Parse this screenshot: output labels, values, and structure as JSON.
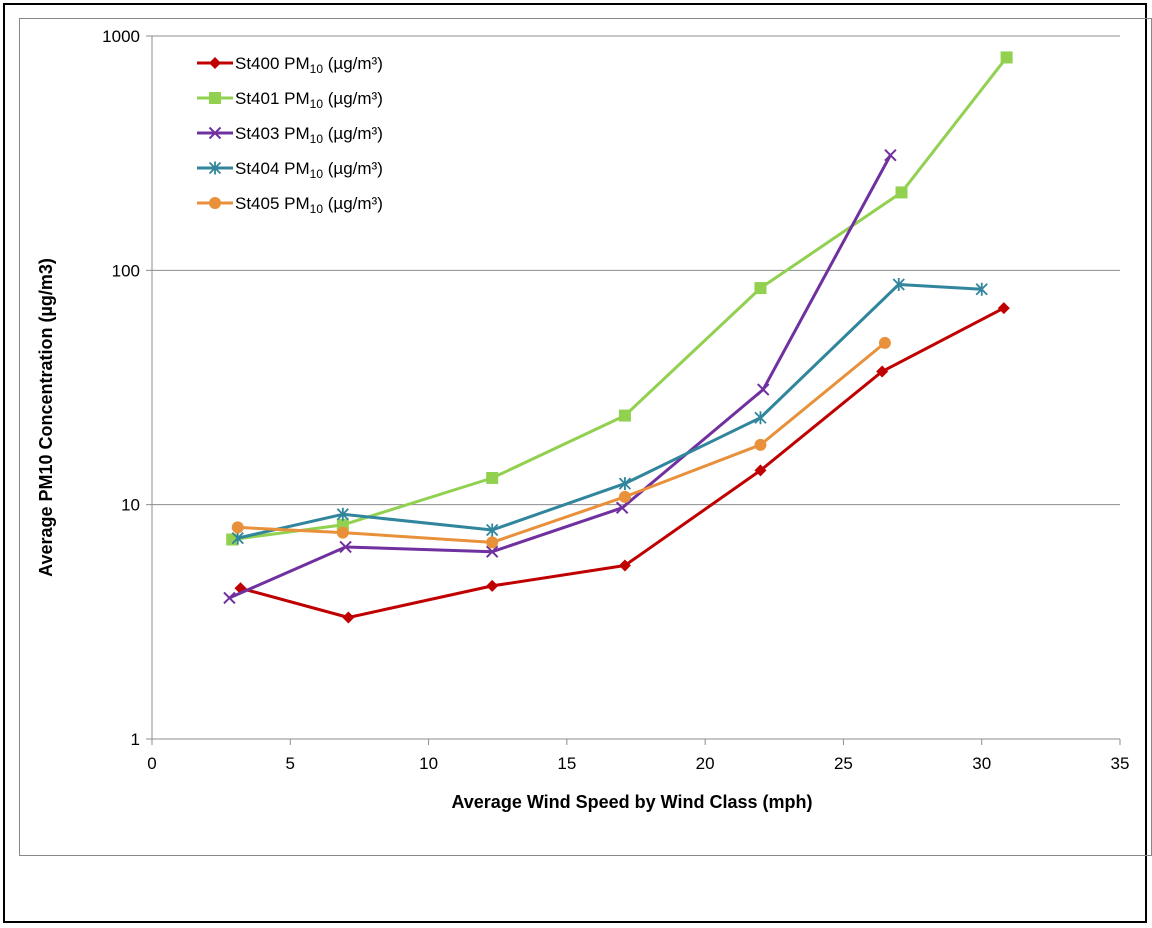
{
  "chart_data": {
    "type": "line",
    "title": "",
    "xlabel": "Average Wind Speed by Wind Class (mph)",
    "ylabel": "Average PM10 Concentration  (µg/m3)",
    "xlim": [
      0,
      35
    ],
    "ylim": [
      1,
      1000
    ],
    "y_scale": "log",
    "x_ticks": [
      0,
      5,
      10,
      15,
      20,
      25,
      30,
      35
    ],
    "x_tick_labels": [
      "0",
      "5",
      "10",
      "15",
      "20",
      "25",
      "30",
      "35"
    ],
    "y_ticks": [
      1,
      10,
      100,
      1000
    ],
    "y_tick_labels": [
      "1",
      "10",
      "100",
      "1000"
    ],
    "grid": "horizontal major gridlines",
    "legend_position": "top-left",
    "series": [
      {
        "name": "St400 PM10 (µg/m³)",
        "label_prefix": "St400 PM",
        "label_sub": "10",
        "label_suffix": " (µg/m³)",
        "color": "#c00000",
        "marker": "diamond",
        "x": [
          3.2,
          7.1,
          12.3,
          17.1,
          22.0,
          26.4,
          30.8
        ],
        "y": [
          4.4,
          3.3,
          4.5,
          5.5,
          14.0,
          37.0,
          69.0
        ]
      },
      {
        "name": "St401 PM10 (µg/m³)",
        "label_prefix": "St401 PM",
        "label_sub": "10",
        "label_suffix": " (µg/m³)",
        "color": "#92d050",
        "marker": "square",
        "x": [
          2.9,
          6.9,
          12.3,
          17.1,
          22.0,
          27.1,
          30.9
        ],
        "y": [
          7.1,
          8.2,
          13.0,
          24.0,
          84.0,
          215.0,
          810.0
        ]
      },
      {
        "name": "St403 PM10 (µg/m³)",
        "label_prefix": "St403 PM",
        "label_sub": "10",
        "label_suffix": " (µg/m³)",
        "color": "#7030a0",
        "marker": "x",
        "x": [
          2.8,
          7.0,
          12.3,
          17.0,
          22.1,
          26.7
        ],
        "y": [
          4.0,
          6.6,
          6.3,
          9.7,
          31.0,
          310.0
        ]
      },
      {
        "name": "St404 PM10 (µg/m³)",
        "label_prefix": "St404 PM",
        "label_sub": "10",
        "label_suffix": " (µg/m³)",
        "color": "#31859c",
        "marker": "asterisk",
        "x": [
          3.1,
          6.9,
          12.3,
          17.1,
          22.0,
          27.0,
          30.0
        ],
        "y": [
          7.2,
          9.1,
          7.8,
          12.3,
          23.5,
          87.0,
          83.0
        ]
      },
      {
        "name": "St405 PM10 (µg/m³)",
        "label_prefix": "St405 PM",
        "label_sub": "10",
        "label_suffix": " (µg/m³)",
        "color": "#e8913a",
        "marker": "circle",
        "x": [
          3.1,
          6.9,
          12.3,
          17.1,
          22.0,
          26.5
        ],
        "y": [
          8.0,
          7.6,
          6.9,
          10.8,
          18.0,
          49.0
        ]
      }
    ]
  }
}
